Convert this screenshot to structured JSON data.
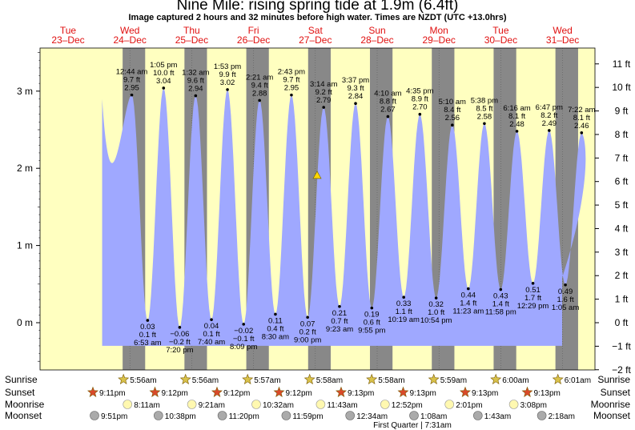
{
  "title": "Nine Mile: rising  spring tide at 1.9m (6.4ft)",
  "subtitle": "Image captured 2 hours and 32 minutes before high water. Times are NZDT (UTC +13.0hrs)",
  "colors": {
    "day_bg": "#ffffc0",
    "night_bg": "#888888",
    "tide_fill": "#9fa8ff",
    "day_label": "#e01010",
    "sunrise_star": "#d9c24a",
    "sunset_star": "#d94a2a",
    "moonrise": "#fff8b0",
    "moonset": "#aaaaaa",
    "current_marker": "#ffd700"
  },
  "days": [
    {
      "name": "Tue",
      "date": "23–Dec"
    },
    {
      "name": "Wed",
      "date": "24–Dec"
    },
    {
      "name": "Thu",
      "date": "25–Dec"
    },
    {
      "name": "Fri",
      "date": "26–Dec"
    },
    {
      "name": "Sat",
      "date": "27–Dec"
    },
    {
      "name": "Sun",
      "date": "28–Dec"
    },
    {
      "name": "Mon",
      "date": "29–Dec"
    },
    {
      "name": "Tue",
      "date": "30–Dec"
    },
    {
      "name": "Wed",
      "date": "31–Dec"
    }
  ],
  "chart_data": {
    "type": "area",
    "title": "Nine Mile: rising  spring tide at 1.9m (6.4ft)",
    "left_axis": {
      "unit": "m",
      "ticks": [
        "0 m",
        "1 m",
        "2 m",
        "3 m"
      ],
      "range": [
        -0.6,
        3.7
      ]
    },
    "right_axis": {
      "unit": "ft",
      "ticks": [
        "−2 ft",
        "−1 ft",
        "0 ft",
        "1 ft",
        "2 ft",
        "3 ft",
        "4 ft",
        "5 ft",
        "6 ft",
        "7 ft",
        "8 ft",
        "9 ft",
        "10 ft",
        "11 ft"
      ]
    },
    "series": [
      {
        "values": [
          {
            "time": "12:44 am",
            "ft": "9.7 ft",
            "m": 2.95,
            "type": "high",
            "day": 1
          },
          {
            "time": "6:53 am",
            "ft": "0.1 ft",
            "m": 0.03,
            "type": "low",
            "day": 1
          },
          {
            "time": "1:05 pm",
            "ft": "10.0 ft",
            "m": 3.04,
            "type": "high",
            "day": 1
          },
          {
            "time": "7:20 pm",
            "ft": "−0.2 ft",
            "m": -0.06,
            "type": "low",
            "day": 1
          },
          {
            "time": "1:32 am",
            "ft": "9.6 ft",
            "m": 2.94,
            "type": "high",
            "day": 2
          },
          {
            "time": "7:40 am",
            "ft": "0.1 ft",
            "m": 0.04,
            "type": "low",
            "day": 2
          },
          {
            "time": "1:53 pm",
            "ft": "9.9 ft",
            "m": 3.02,
            "type": "high",
            "day": 2
          },
          {
            "time": "8:09 pm",
            "ft": "−0.1 ft",
            "m": -0.02,
            "type": "low",
            "day": 2
          },
          {
            "time": "2:21 am",
            "ft": "9.4 ft",
            "m": 2.88,
            "type": "high",
            "day": 3
          },
          {
            "time": "8:30 am",
            "ft": "0.4 ft",
            "m": 0.11,
            "type": "low",
            "day": 3
          },
          {
            "time": "2:43 pm",
            "ft": "9.7 ft",
            "m": 2.95,
            "type": "high",
            "day": 3
          },
          {
            "time": "9:00 pm",
            "ft": "0.2 ft",
            "m": 0.07,
            "type": "low",
            "day": 3
          },
          {
            "time": "3:14 am",
            "ft": "9.2 ft",
            "m": 2.79,
            "type": "high",
            "day": 4
          },
          {
            "time": "9:23 am",
            "ft": "0.7 ft",
            "m": 0.21,
            "type": "low",
            "day": 4
          },
          {
            "time": "3:37 pm",
            "ft": "9.3 ft",
            "m": 2.84,
            "type": "high",
            "day": 4
          },
          {
            "time": "9:55 pm",
            "ft": "0.6 ft",
            "m": 0.19,
            "type": "low",
            "day": 4
          },
          {
            "time": "4:10 am",
            "ft": "8.8 ft",
            "m": 2.67,
            "type": "high",
            "day": 5
          },
          {
            "time": "10:19 am",
            "ft": "1.1 ft",
            "m": 0.33,
            "type": "low",
            "day": 5
          },
          {
            "time": "4:35 pm",
            "ft": "8.9 ft",
            "m": 2.7,
            "type": "high",
            "day": 5
          },
          {
            "time": "10:54 pm",
            "ft": "1.0 ft",
            "m": 0.32,
            "type": "low",
            "day": 5
          },
          {
            "time": "5:10 am",
            "ft": "8.4 ft",
            "m": 2.56,
            "type": "high",
            "day": 6
          },
          {
            "time": "11:23 am",
            "ft": "1.4 ft",
            "m": 0.44,
            "type": "low",
            "day": 6
          },
          {
            "time": "5:38 pm",
            "ft": "8.5 ft",
            "m": 2.58,
            "type": "high",
            "day": 6
          },
          {
            "time": "11:58 pm",
            "ft": "1.4 ft",
            "m": 0.43,
            "type": "low",
            "day": 6
          },
          {
            "time": "6:16 am",
            "ft": "8.1 ft",
            "m": 2.48,
            "type": "high",
            "day": 7
          },
          {
            "time": "12:29 pm",
            "ft": "1.7 ft",
            "m": 0.51,
            "type": "low",
            "day": 7
          },
          {
            "time": "6:47 pm",
            "ft": "8.2 ft",
            "m": 2.49,
            "type": "high",
            "day": 7
          },
          {
            "time": "1:05 am",
            "ft": "1.6 ft",
            "m": 0.49,
            "type": "low",
            "day": 8
          },
          {
            "time": "7:22 am",
            "ft": "8.1 ft",
            "m": 2.46,
            "type": "high",
            "day": 8
          }
        ]
      }
    ],
    "current": {
      "m": 1.9,
      "ft": 6.4
    }
  },
  "rows": {
    "sunrise": {
      "label": "Sunrise",
      "times": [
        "5:56am",
        "5:56am",
        "5:57am",
        "5:58am",
        "5:58am",
        "5:59am",
        "6:00am",
        "6:01am"
      ]
    },
    "sunset": {
      "label": "Sunset",
      "times": [
        "9:11pm",
        "9:12pm",
        "9:12pm",
        "9:12pm",
        "9:13pm",
        "9:13pm",
        "9:13pm",
        "9:13pm"
      ]
    },
    "moonrise": {
      "label": "Moonrise",
      "times": [
        "8:11am",
        "9:21am",
        "10:32am",
        "11:43am",
        "12:52pm",
        "2:01pm",
        "3:08pm"
      ]
    },
    "moonset": {
      "label": "Moonset",
      "times": [
        "9:51pm",
        "10:38pm",
        "11:20pm",
        "11:59pm",
        "12:34am",
        "1:08am",
        "1:43am",
        "2:18am"
      ]
    },
    "moon_phase": "First Quarter | 7:31am"
  }
}
